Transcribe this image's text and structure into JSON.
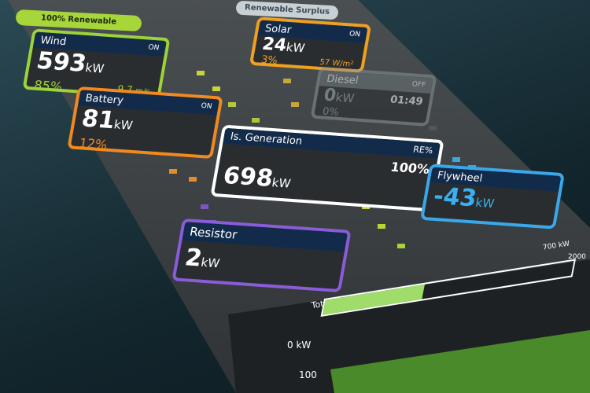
{
  "badges": {
    "renewable": "100% Renewable",
    "surplus": "Renewable Surplus"
  },
  "wind": {
    "name": "Wind",
    "status": "ON",
    "value": "593",
    "unit": "kW",
    "percent": "85%",
    "speed": "9.7",
    "speed_unit": "m/s"
  },
  "solar": {
    "name": "Solar",
    "status": "ON",
    "value": "24",
    "unit": "kW",
    "percent": "3%",
    "irradiance": "57",
    "irradiance_unit": "W/m²"
  },
  "diesel": {
    "name": "Diesel",
    "status": "OFF",
    "value": "0",
    "unit": "kW",
    "percent": "0%",
    "timer": "01:49"
  },
  "battery": {
    "name": "Battery",
    "status": "ON",
    "value": "81",
    "unit": "kW",
    "percent": "12%"
  },
  "generation": {
    "name": "Is. Generation",
    "re_label": "RE%",
    "value": "698",
    "unit": "kW",
    "re_value": "100%"
  },
  "flywheel": {
    "name": "Flywheel",
    "value": "-43",
    "unit": "kW"
  },
  "resistor": {
    "name": "Resistor",
    "value": "2",
    "unit": "kW"
  },
  "demand": {
    "title": "Total Customer Demand",
    "max_label": "700 kW",
    "max2_label": "2000",
    "zero_label": "0 kW",
    "low_label": "100"
  }
}
